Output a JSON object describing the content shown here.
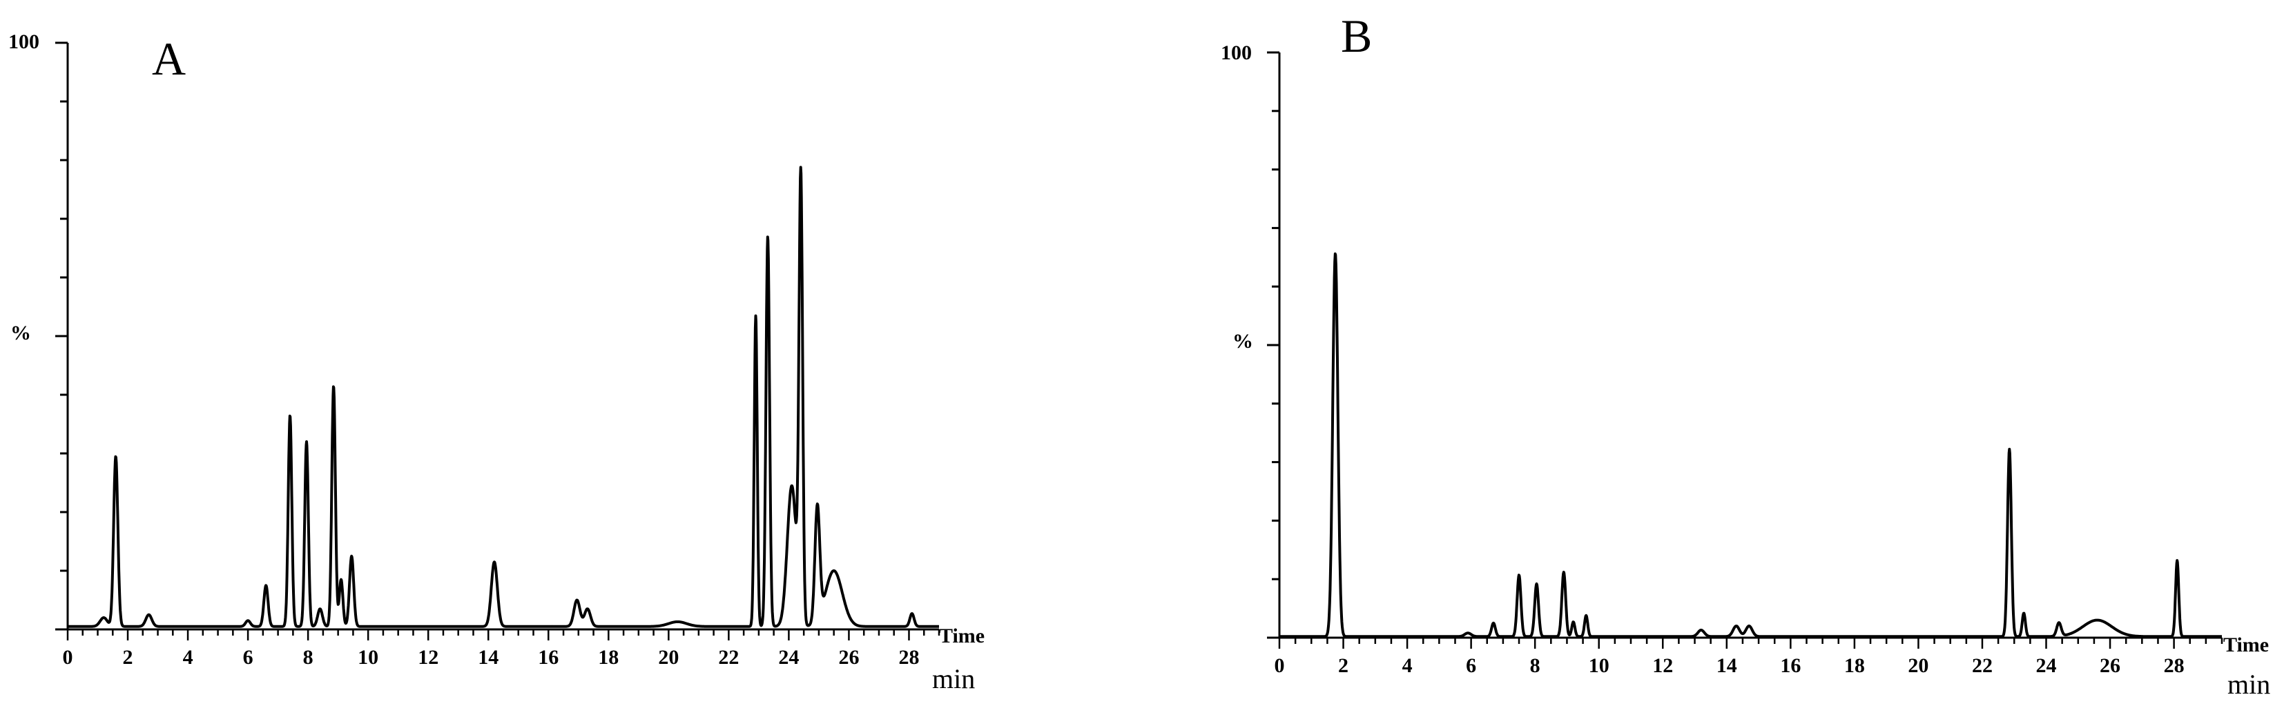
{
  "chart_data": [
    {
      "type": "line",
      "panel_label": "A",
      "ylabel": "%",
      "y_top_label": "100",
      "xlabel": "Time",
      "x_unit": "min",
      "xlim": [
        0,
        29
      ],
      "ylim": [
        0,
        100
      ],
      "x_ticks": [
        0,
        2,
        4,
        6,
        8,
        10,
        12,
        14,
        16,
        18,
        20,
        22,
        24,
        26,
        28
      ],
      "baseline": 0.5,
      "peaks": [
        {
          "x": 1.2,
          "y": 1.5,
          "w": 0.12
        },
        {
          "x": 1.6,
          "y": 29,
          "w": 0.07
        },
        {
          "x": 2.7,
          "y": 2,
          "w": 0.1
        },
        {
          "x": 6.0,
          "y": 1,
          "w": 0.08
        },
        {
          "x": 6.6,
          "y": 7,
          "w": 0.07
        },
        {
          "x": 7.4,
          "y": 36,
          "w": 0.06
        },
        {
          "x": 7.95,
          "y": 31.5,
          "w": 0.06
        },
        {
          "x": 8.4,
          "y": 3,
          "w": 0.08
        },
        {
          "x": 8.85,
          "y": 41,
          "w": 0.06
        },
        {
          "x": 9.1,
          "y": 8,
          "w": 0.06
        },
        {
          "x": 9.45,
          "y": 12,
          "w": 0.07
        },
        {
          "x": 14.2,
          "y": 11,
          "w": 0.1
        },
        {
          "x": 16.95,
          "y": 4.5,
          "w": 0.1
        },
        {
          "x": 17.3,
          "y": 3,
          "w": 0.1
        },
        {
          "x": 20.3,
          "y": 0.8,
          "w": 0.3
        },
        {
          "x": 22.9,
          "y": 53,
          "w": 0.05
        },
        {
          "x": 23.3,
          "y": 66.5,
          "w": 0.06
        },
        {
          "x": 24.1,
          "y": 24,
          "w": 0.15
        },
        {
          "x": 24.4,
          "y": 75,
          "w": 0.06
        },
        {
          "x": 24.95,
          "y": 19.5,
          "w": 0.08
        },
        {
          "x": 25.5,
          "y": 9.5,
          "w": 0.28
        },
        {
          "x": 28.1,
          "y": 2.2,
          "w": 0.07
        }
      ]
    },
    {
      "type": "line",
      "panel_label": "B",
      "ylabel": "%",
      "y_top_label": "100",
      "xlabel": "Time",
      "x_unit": "min",
      "xlim": [
        0,
        29.5
      ],
      "ylim": [
        0,
        100
      ],
      "x_ticks": [
        0,
        2,
        4,
        6,
        8,
        10,
        12,
        14,
        16,
        18,
        20,
        22,
        24,
        26,
        28
      ],
      "baseline": 0.2,
      "peaks": [
        {
          "x": 1.75,
          "y": 65.5,
          "w": 0.08
        },
        {
          "x": 5.9,
          "y": 0.6,
          "w": 0.1
        },
        {
          "x": 6.7,
          "y": 2.3,
          "w": 0.06
        },
        {
          "x": 7.5,
          "y": 10.5,
          "w": 0.06
        },
        {
          "x": 8.05,
          "y": 9,
          "w": 0.06
        },
        {
          "x": 8.9,
          "y": 11,
          "w": 0.06
        },
        {
          "x": 9.2,
          "y": 2.5,
          "w": 0.05
        },
        {
          "x": 9.6,
          "y": 3.6,
          "w": 0.05
        },
        {
          "x": 13.2,
          "y": 1.1,
          "w": 0.1
        },
        {
          "x": 14.3,
          "y": 1.8,
          "w": 0.1
        },
        {
          "x": 14.7,
          "y": 1.8,
          "w": 0.1
        },
        {
          "x": 22.85,
          "y": 32,
          "w": 0.06
        },
        {
          "x": 23.3,
          "y": 4,
          "w": 0.05
        },
        {
          "x": 24.4,
          "y": 2.3,
          "w": 0.07
        },
        {
          "x": 25.6,
          "y": 2.8,
          "w": 0.45
        },
        {
          "x": 28.1,
          "y": 13,
          "w": 0.05
        }
      ]
    }
  ]
}
